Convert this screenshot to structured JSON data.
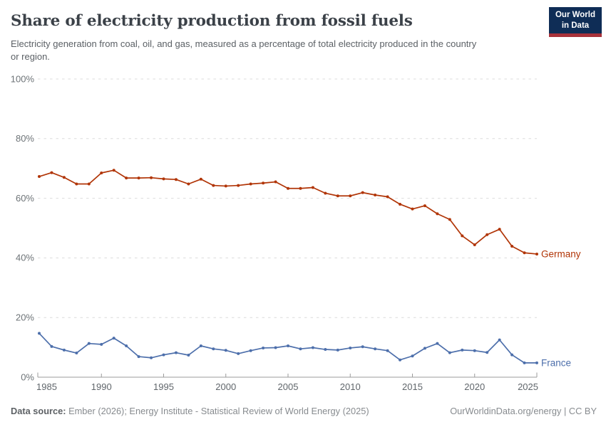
{
  "header": {
    "title": "Share of electricity production from fossil fuels",
    "subtitle": "Electricity generation from coal, oil, and gas, measured as a percentage of total electricity produced in the country or region.",
    "logo": {
      "line1": "Our World",
      "line2": "in Data",
      "bg": "#0f2d56",
      "accent": "#a8323a"
    }
  },
  "footer": {
    "source_label": "Data source:",
    "source_text": " Ember (2026); Energy Institute - Statistical Review of World Energy (2025)",
    "credit": "OurWorldinData.org/energy | CC BY"
  },
  "chart_data": {
    "type": "line",
    "title": "Share of electricity production from fossil fuels",
    "xlabel": "",
    "ylabel": "",
    "ylim": [
      0,
      100
    ],
    "yticks": [
      0,
      20,
      40,
      60,
      80,
      100
    ],
    "ytick_suffix": "%",
    "xticks": [
      1985,
      1990,
      1995,
      2000,
      2005,
      2010,
      2015,
      2020,
      2025
    ],
    "grid": "dashed-horizontal",
    "legend_position": "end-of-line-labels",
    "x": [
      1985,
      1986,
      1987,
      1988,
      1989,
      1990,
      1991,
      1992,
      1993,
      1994,
      1995,
      1996,
      1997,
      1998,
      1999,
      2000,
      2001,
      2002,
      2003,
      2004,
      2005,
      2006,
      2007,
      2008,
      2009,
      2010,
      2011,
      2012,
      2013,
      2014,
      2015,
      2016,
      2017,
      2018,
      2019,
      2020,
      2021,
      2022,
      2023,
      2024,
      2025
    ],
    "series": [
      {
        "name": "Germany",
        "color": "#b13507",
        "values": [
          67.3,
          68.6,
          67.0,
          64.8,
          64.8,
          68.5,
          69.4,
          66.8,
          66.8,
          66.9,
          66.5,
          66.3,
          64.8,
          66.4,
          64.3,
          64.1,
          64.3,
          64.8,
          65.1,
          65.5,
          63.3,
          63.3,
          63.6,
          61.7,
          60.8,
          60.8,
          61.9,
          61.1,
          60.5,
          58.0,
          56.4,
          57.5,
          54.8,
          52.9,
          47.4,
          44.4,
          47.8,
          49.6,
          43.9,
          41.7,
          41.3
        ]
      },
      {
        "name": "France",
        "color": "#4d6fab",
        "values": [
          14.7,
          10.3,
          9.1,
          8.1,
          11.3,
          11.0,
          13.1,
          10.5,
          6.9,
          6.5,
          7.5,
          8.2,
          7.4,
          10.5,
          9.5,
          9.0,
          7.9,
          8.9,
          9.8,
          9.9,
          10.5,
          9.5,
          9.9,
          9.3,
          9.1,
          9.8,
          10.2,
          9.5,
          8.9,
          5.8,
          7.1,
          9.7,
          11.3,
          8.2,
          9.1,
          8.9,
          8.3,
          12.5,
          7.5,
          4.8,
          4.8
        ]
      }
    ]
  }
}
